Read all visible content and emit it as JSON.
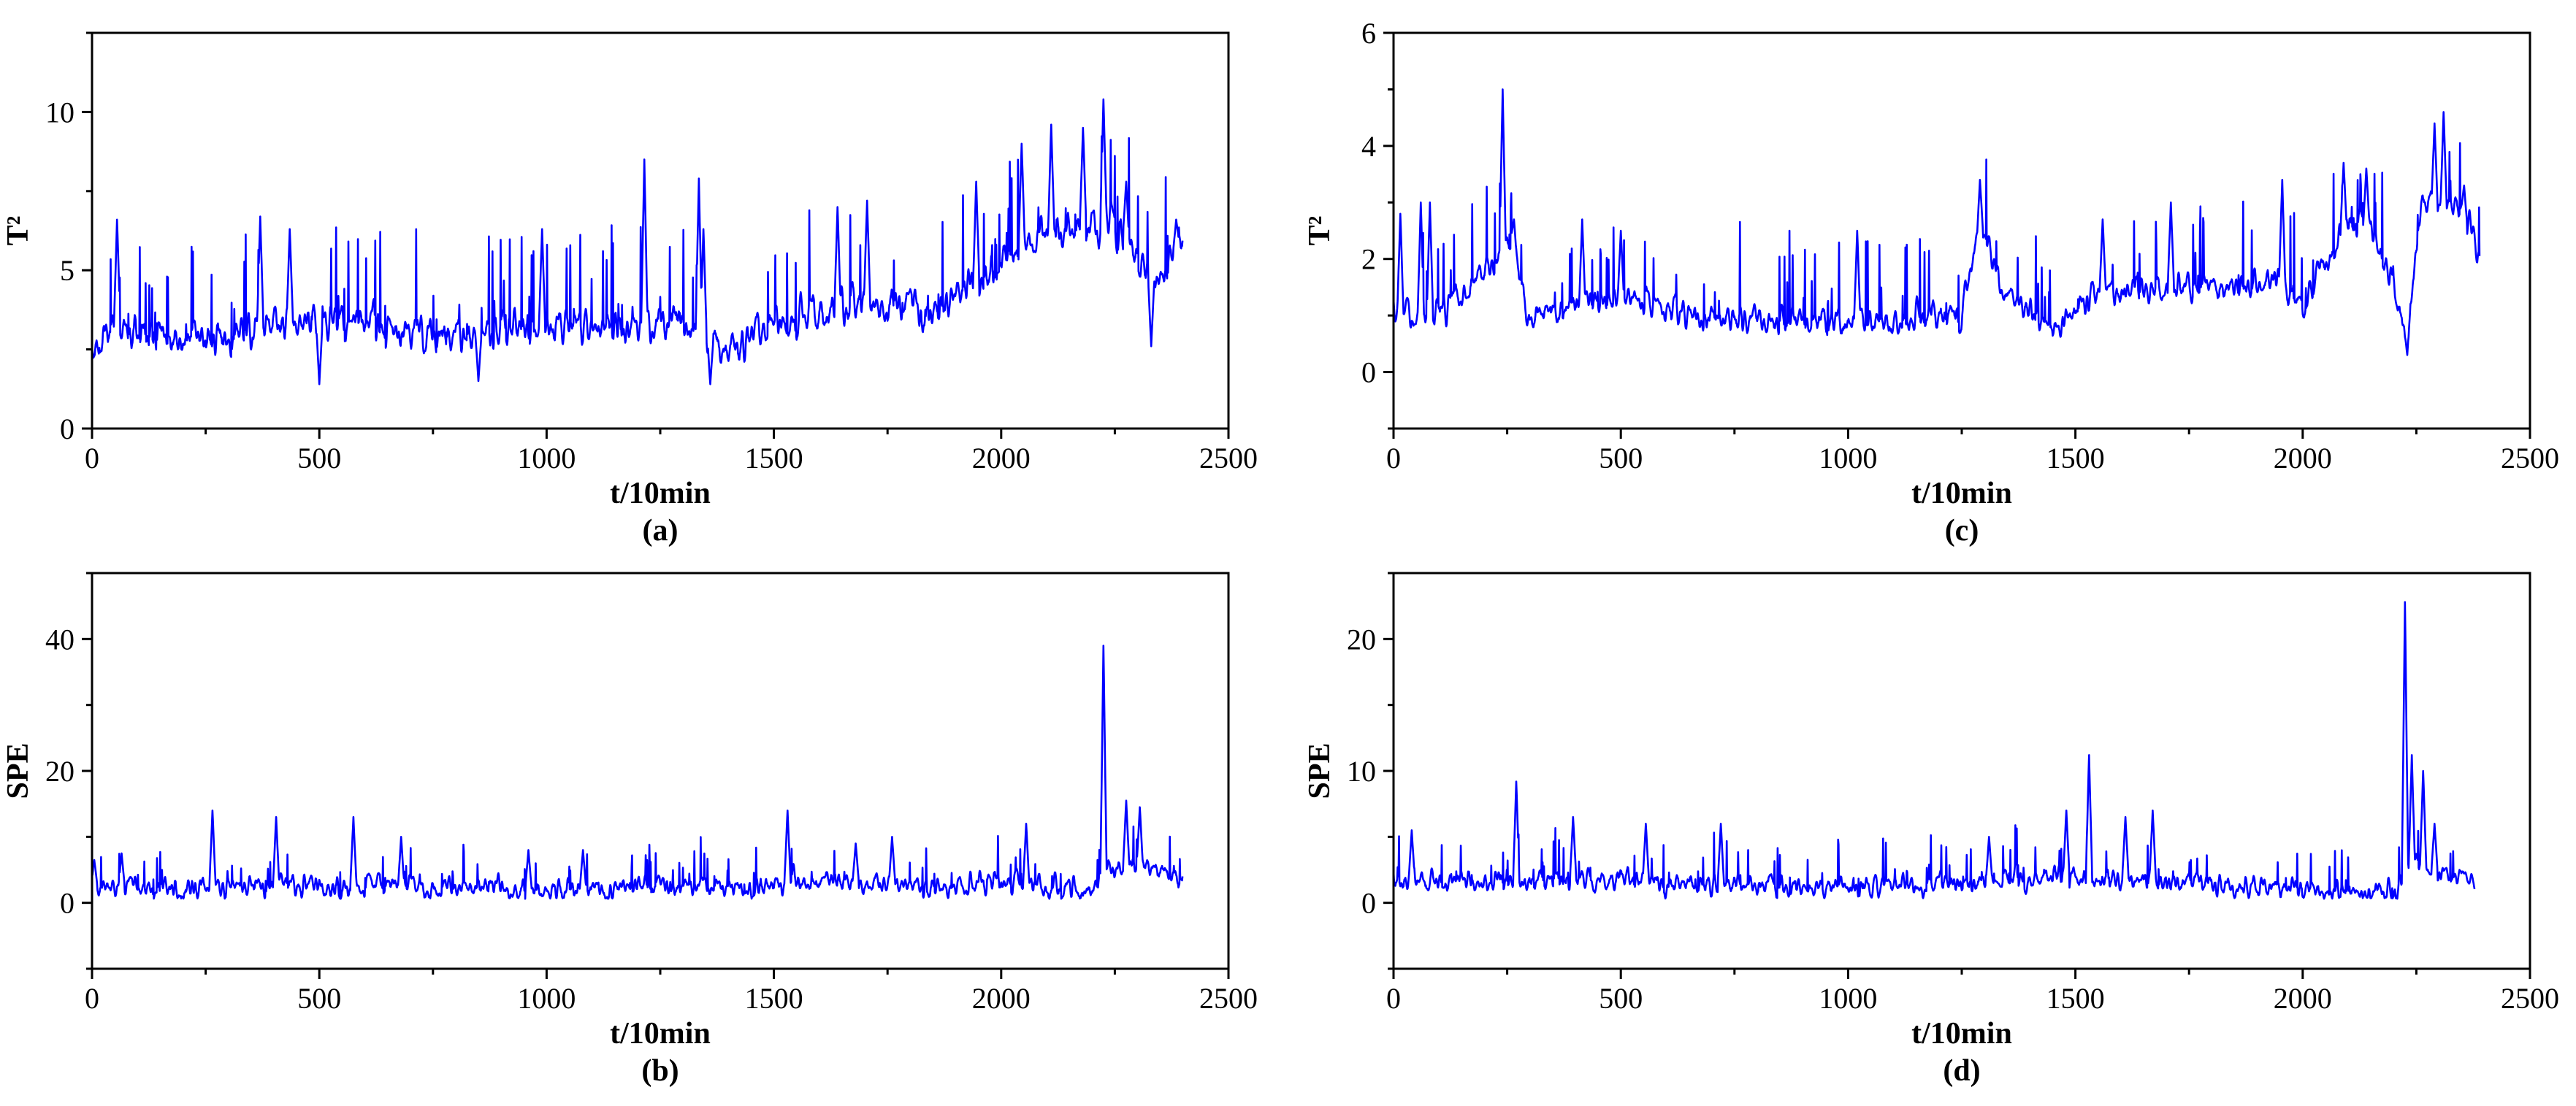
{
  "figure": {
    "line_color": "#0000ff"
  },
  "chart_data": [
    {
      "id": "a",
      "type": "line",
      "caption": "(a)",
      "xlabel": "t/10min",
      "ylabel": "T²",
      "xlim": [
        0,
        2500
      ],
      "ylim": [
        0,
        12.5
      ],
      "xticks": [
        0,
        500,
        1000,
        1500,
        2000,
        2500
      ],
      "yticks": [
        0,
        5,
        10
      ],
      "grid": false,
      "series": [
        {
          "n": 2400,
          "baseline": 2.9,
          "noise": 0.75,
          "peak_scale": 1.6,
          "anchors": [
            [
              0,
              2.2
            ],
            [
              60,
              3.4
            ],
            [
              200,
              2.6
            ],
            [
              400,
              3.4
            ],
            [
              600,
              3.3
            ],
            [
              800,
              3.0
            ],
            [
              1000,
              3.2
            ],
            [
              1150,
              3.2
            ],
            [
              1300,
              3.4
            ],
            [
              1400,
              2.6
            ],
            [
              1550,
              3.4
            ],
            [
              1700,
              4.0
            ],
            [
              1850,
              3.6
            ],
            [
              1950,
              4.6
            ],
            [
              2050,
              5.8
            ],
            [
              2150,
              6.4
            ],
            [
              2250,
              6.6
            ],
            [
              2330,
              4.6
            ],
            [
              2390,
              5.8
            ]
          ],
          "peaks": [
            [
              55,
              6.6
            ],
            [
              370,
              6.7
            ],
            [
              435,
              6.3
            ],
            [
              990,
              6.3
            ],
            [
              1215,
              8.5
            ],
            [
              1335,
              7.9
            ],
            [
              1345,
              6.3
            ],
            [
              1640,
              7.0
            ],
            [
              1705,
              7.2
            ],
            [
              1945,
              7.8
            ],
            [
              2045,
              9.0
            ],
            [
              2110,
              9.6
            ],
            [
              2180,
              9.5
            ],
            [
              2225,
              10.4
            ],
            [
              2275,
              7.8
            ],
            [
              2330,
              2.6
            ],
            [
              1360,
              1.4
            ],
            [
              850,
              1.5
            ],
            [
              500,
              1.4
            ],
            [
              2385,
              6.6
            ]
          ]
        }
      ]
    },
    {
      "id": "b",
      "type": "line",
      "caption": "(b)",
      "xlabel": "t/10min",
      "ylabel": "SPE",
      "xlim": [
        0,
        2500
      ],
      "ylim": [
        -10,
        50
      ],
      "xticks": [
        0,
        500,
        1000,
        1500,
        2000,
        2500
      ],
      "yticks": [
        0,
        20,
        40
      ],
      "grid": false,
      "series": [
        {
          "n": 2400,
          "baseline": 2.2,
          "noise": 2.2,
          "peak_scale": 3.0,
          "anchors": [
            [
              0,
              2.5
            ],
            [
              200,
              2.4
            ],
            [
              600,
              2.4
            ],
            [
              1000,
              2.1
            ],
            [
              1400,
              2.4
            ],
            [
              1600,
              3.2
            ],
            [
              1800,
              2.8
            ],
            [
              2000,
              3.0
            ],
            [
              2200,
              1.5
            ],
            [
              2240,
              5.0
            ],
            [
              2300,
              5.5
            ],
            [
              2390,
              3.5
            ]
          ],
          "peaks": [
            [
              5,
              6.5
            ],
            [
              65,
              7.5
            ],
            [
              265,
              14.0
            ],
            [
              405,
              13.0
            ],
            [
              575,
              13.0
            ],
            [
              680,
              10.0
            ],
            [
              960,
              8.0
            ],
            [
              1080,
              8.0
            ],
            [
              1530,
              14.0
            ],
            [
              1680,
              9.0
            ],
            [
              1760,
              10.0
            ],
            [
              2055,
              12.0
            ],
            [
              2225,
              39.0
            ],
            [
              2275,
              15.5
            ],
            [
              2305,
              14.5
            ]
          ]
        }
      ]
    },
    {
      "id": "c",
      "type": "line",
      "caption": "(c)",
      "xlabel": "t/10min",
      "ylabel": "T²",
      "xlim": [
        0,
        2500
      ],
      "ylim": [
        -1,
        6
      ],
      "xticks": [
        0,
        500,
        1000,
        1500,
        2000,
        2500
      ],
      "yticks": [
        0,
        2,
        4,
        6
      ],
      "grid": false,
      "series": [
        {
          "n": 2390,
          "baseline": 1.1,
          "noise": 0.32,
          "peak_scale": 0.8,
          "anchors": [
            [
              0,
              1.0
            ],
            [
              100,
              1.0
            ],
            [
              220,
              2.0
            ],
            [
              260,
              2.3
            ],
            [
              300,
              1.0
            ],
            [
              500,
              1.3
            ],
            [
              700,
              0.9
            ],
            [
              900,
              0.9
            ],
            [
              1100,
              0.9
            ],
            [
              1250,
              1.0
            ],
            [
              1290,
              2.6
            ],
            [
              1340,
              1.5
            ],
            [
              1450,
              0.8
            ],
            [
              1550,
              1.4
            ],
            [
              1700,
              1.5
            ],
            [
              1850,
              1.5
            ],
            [
              1950,
              1.6
            ],
            [
              2000,
              1.1
            ],
            [
              2080,
              2.5
            ],
            [
              2150,
              2.6
            ],
            [
              2200,
              1.5
            ],
            [
              2230,
              0.6
            ],
            [
              2260,
              3.0
            ],
            [
              2350,
              2.8
            ],
            [
              2385,
              2.2
            ]
          ],
          "peaks": [
            [
              15,
              2.8
            ],
            [
              60,
              3.0
            ],
            [
              80,
              3.0
            ],
            [
              240,
              5.0
            ],
            [
              265,
              2.7
            ],
            [
              415,
              2.7
            ],
            [
              500,
              2.5
            ],
            [
              1020,
              2.5
            ],
            [
              1290,
              3.4
            ],
            [
              1560,
              2.7
            ],
            [
              1710,
              3.0
            ],
            [
              1955,
              3.4
            ],
            [
              2090,
              3.7
            ],
            [
              2140,
              3.6
            ],
            [
              2230,
              0.3
            ],
            [
              2290,
              4.4
            ],
            [
              2310,
              4.6
            ],
            [
              2355,
              3.3
            ]
          ]
        }
      ]
    },
    {
      "id": "d",
      "type": "line",
      "caption": "(d)",
      "xlabel": "t/10min",
      "ylabel": "SPE",
      "xlim": [
        0,
        2500
      ],
      "ylim": [
        -5,
        25
      ],
      "xticks": [
        0,
        500,
        1000,
        1500,
        2000,
        2500
      ],
      "yticks": [
        0,
        10,
        20
      ],
      "grid": false,
      "series": [
        {
          "n": 2385,
          "baseline": 1.5,
          "noise": 1.1,
          "peak_scale": 1.8,
          "anchors": [
            [
              0,
              1.6
            ],
            [
              400,
              1.8
            ],
            [
              800,
              1.3
            ],
            [
              1200,
              1.4
            ],
            [
              1450,
              2.0
            ],
            [
              1700,
              1.8
            ],
            [
              1900,
              1.2
            ],
            [
              2200,
              0.7
            ],
            [
              2240,
              3.0
            ],
            [
              2300,
              2.2
            ],
            [
              2385,
              1.5
            ]
          ],
          "peaks": [
            [
              40,
              5.5
            ],
            [
              270,
              9.2
            ],
            [
              395,
              6.5
            ],
            [
              555,
              6.0
            ],
            [
              720,
              6.0
            ],
            [
              1310,
              5.0
            ],
            [
              1480,
              7.0
            ],
            [
              1530,
              11.2
            ],
            [
              1610,
              6.5
            ],
            [
              1670,
              7.0
            ],
            [
              2225,
              22.8
            ],
            [
              2240,
              11.2
            ],
            [
              2265,
              10.0
            ],
            [
              2290,
              6.0
            ],
            [
              2385,
              3.7
            ]
          ]
        }
      ]
    }
  ]
}
